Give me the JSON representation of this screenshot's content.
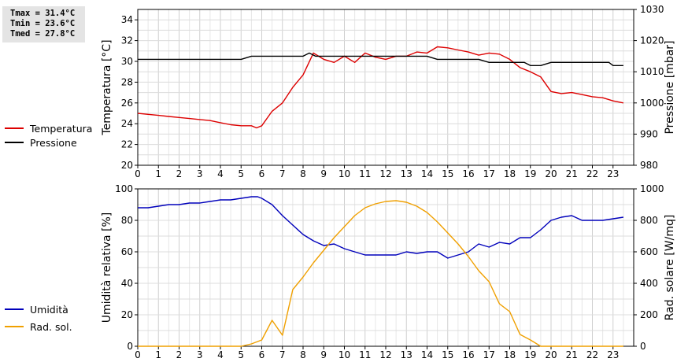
{
  "stats": {
    "tmax": "Tmax = 31.4°C",
    "tmin": "Tmin = 23.6°C",
    "tmed": "Tmed = 27.8°C"
  },
  "legend_top": [
    {
      "label": "Temperatura",
      "color": "#dd0000"
    },
    {
      "label": "Pressione",
      "color": "#000000"
    }
  ],
  "legend_bottom": [
    {
      "label": "Umidità",
      "color": "#0000bb"
    },
    {
      "label": "Rad. sol.",
      "color": "#f0a000"
    }
  ],
  "chart_data": [
    {
      "type": "line",
      "xlim": [
        0,
        24
      ],
      "x_ticks": [
        0,
        1,
        2,
        3,
        4,
        5,
        6,
        7,
        8,
        9,
        10,
        11,
        12,
        13,
        14,
        15,
        16,
        17,
        18,
        19,
        20,
        21,
        22,
        23
      ],
      "grid": true,
      "left_axis": {
        "label": "Temperatura [°C]",
        "ylim": [
          20,
          35
        ],
        "ticks": [
          20,
          22,
          24,
          26,
          28,
          30,
          32,
          34
        ]
      },
      "right_axis": {
        "label": "Pressione [mbar]",
        "ylim": [
          980,
          1030
        ],
        "ticks": [
          980,
          990,
          1000,
          1010,
          1020,
          1030
        ]
      },
      "series": [
        {
          "name": "Temperatura",
          "axis": "left",
          "color": "#dd0000",
          "x": [
            0,
            0.5,
            1,
            1.5,
            2,
            2.5,
            3,
            3.5,
            4,
            4.5,
            5,
            5.5,
            5.75,
            6,
            6.5,
            7,
            7.5,
            8,
            8.5,
            9,
            9.5,
            10,
            10.5,
            11,
            11.5,
            12,
            12.5,
            13,
            13.5,
            14,
            14.5,
            15,
            15.5,
            16,
            16.5,
            17,
            17.5,
            18,
            18.5,
            19,
            19.5,
            20,
            20.5,
            21,
            21.5,
            22,
            22.5,
            23,
            23.5
          ],
          "y": [
            25.0,
            24.9,
            24.8,
            24.7,
            24.6,
            24.5,
            24.4,
            24.3,
            24.1,
            23.9,
            23.8,
            23.8,
            23.6,
            23.8,
            25.2,
            26.0,
            27.5,
            28.7,
            30.8,
            30.2,
            29.9,
            30.5,
            29.9,
            30.8,
            30.4,
            30.2,
            30.5,
            30.5,
            30.9,
            30.8,
            31.4,
            31.3,
            31.1,
            30.9,
            30.6,
            30.8,
            30.7,
            30.2,
            29.4,
            29.0,
            28.5,
            27.1,
            26.9,
            27.0,
            26.8,
            26.6,
            26.5,
            26.2,
            26.0
          ]
        },
        {
          "name": "Pressione",
          "axis": "right",
          "color": "#000000",
          "x": [
            0,
            5,
            5.5,
            8,
            8.3,
            8.6,
            9,
            14,
            14.5,
            16,
            16.5,
            17,
            17.5,
            18.7,
            19,
            19.5,
            20,
            21,
            22,
            22.8,
            23,
            23.5
          ],
          "y": [
            1014,
            1014,
            1015,
            1015,
            1016,
            1015,
            1015,
            1015,
            1014,
            1014,
            1014,
            1013,
            1013,
            1013,
            1012,
            1012,
            1013,
            1013,
            1013,
            1013,
            1012,
            1012
          ]
        }
      ]
    },
    {
      "type": "line",
      "xlim": [
        0,
        24
      ],
      "x_ticks": [
        0,
        1,
        2,
        3,
        4,
        5,
        6,
        7,
        8,
        9,
        10,
        11,
        12,
        13,
        14,
        15,
        16,
        17,
        18,
        19,
        20,
        21,
        22,
        23
      ],
      "grid": true,
      "left_axis": {
        "label": "Umidità relativa [%]",
        "ylim": [
          0,
          100
        ],
        "ticks": [
          0,
          20,
          40,
          60,
          80,
          100
        ]
      },
      "right_axis": {
        "label": "Rad. solare [W/mq]",
        "ylim": [
          0,
          1000
        ],
        "ticks": [
          0,
          200,
          400,
          600,
          800,
          1000
        ]
      },
      "series": [
        {
          "name": "Umidità",
          "axis": "left",
          "color": "#0000bb",
          "x": [
            0,
            0.5,
            1,
            1.5,
            2,
            2.5,
            3,
            3.5,
            4,
            4.5,
            5,
            5.5,
            5.8,
            6,
            6.5,
            7,
            7.5,
            8,
            8.5,
            9,
            9.5,
            10,
            10.5,
            11,
            11.5,
            12,
            12.5,
            13,
            13.5,
            14,
            14.5,
            15,
            15.5,
            16,
            16.5,
            17,
            17.5,
            18,
            18.5,
            19,
            19.5,
            20,
            20.5,
            21,
            21.5,
            22,
            22.5,
            23,
            23.5
          ],
          "y": [
            88,
            88,
            89,
            90,
            90,
            91,
            91,
            92,
            93,
            93,
            94,
            95,
            95,
            94,
            90,
            83,
            77,
            71,
            67,
            64,
            65,
            62,
            60,
            58,
            58,
            58,
            58,
            60,
            59,
            60,
            60,
            56,
            58,
            60,
            65,
            63,
            66,
            65,
            69,
            69,
            74,
            80,
            82,
            83,
            80,
            80,
            80,
            81,
            82
          ]
        },
        {
          "name": "Rad. sol.",
          "axis": "right",
          "color": "#f0a000",
          "x": [
            0,
            5,
            5.5,
            6,
            6.5,
            7,
            7.5,
            8,
            8.5,
            9,
            9.5,
            10,
            10.5,
            11,
            11.5,
            12,
            12.5,
            13,
            13.5,
            14,
            14.5,
            15,
            15.5,
            16,
            16.5,
            17,
            17.5,
            18,
            18.5,
            19,
            19.5,
            20,
            21,
            22,
            23,
            23.5
          ],
          "y": [
            0,
            0,
            15,
            40,
            165,
            70,
            360,
            440,
            530,
            610,
            690,
            760,
            830,
            880,
            905,
            920,
            925,
            915,
            890,
            850,
            790,
            720,
            650,
            570,
            480,
            410,
            270,
            220,
            75,
            40,
            0,
            0,
            0,
            0,
            0,
            0
          ]
        }
      ]
    }
  ]
}
